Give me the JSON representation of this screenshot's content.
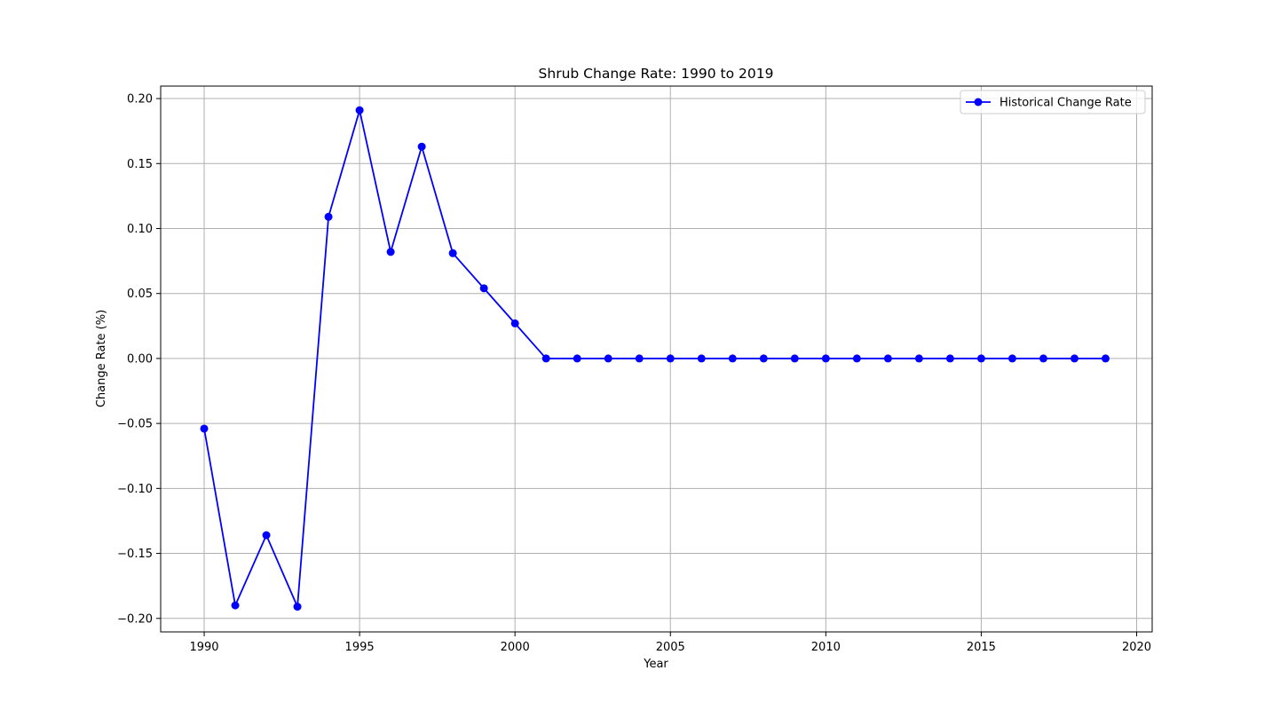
{
  "chart_data": {
    "type": "line",
    "title": "Shrub Change Rate: 1990 to 2019",
    "xlabel": "Year",
    "ylabel": "Change Rate (%)",
    "xlim": [
      1988.6,
      2020.5
    ],
    "ylim": [
      -0.2104,
      0.2096
    ],
    "x_ticks": [
      1990,
      1995,
      2000,
      2005,
      2010,
      2015,
      2020
    ],
    "y_ticks": [
      -0.2,
      -0.15,
      -0.1,
      -0.05,
      0.0,
      0.05,
      0.1,
      0.15,
      0.2
    ],
    "y_tick_labels": [
      "−0.20",
      "−0.15",
      "−0.10",
      "−0.05",
      "0.00",
      "0.05",
      "0.10",
      "0.15",
      "0.20"
    ],
    "grid": true,
    "legend_position": "top-right",
    "series": [
      {
        "name": "Historical Change Rate",
        "color": "#0000ff",
        "marker": "circle",
        "x": [
          1990,
          1991,
          1992,
          1993,
          1994,
          1995,
          1996,
          1997,
          1998,
          1999,
          2000,
          2001,
          2002,
          2003,
          2004,
          2005,
          2006,
          2007,
          2008,
          2009,
          2010,
          2011,
          2012,
          2013,
          2014,
          2015,
          2016,
          2017,
          2018,
          2019
        ],
        "values": [
          -0.054,
          -0.19,
          -0.136,
          -0.191,
          0.109,
          0.191,
          0.082,
          0.163,
          0.081,
          0.054,
          0.027,
          0,
          0,
          0,
          0,
          0,
          0,
          0,
          0,
          0,
          0,
          0,
          0,
          0,
          0,
          0,
          0,
          0,
          0,
          0
        ]
      }
    ]
  }
}
